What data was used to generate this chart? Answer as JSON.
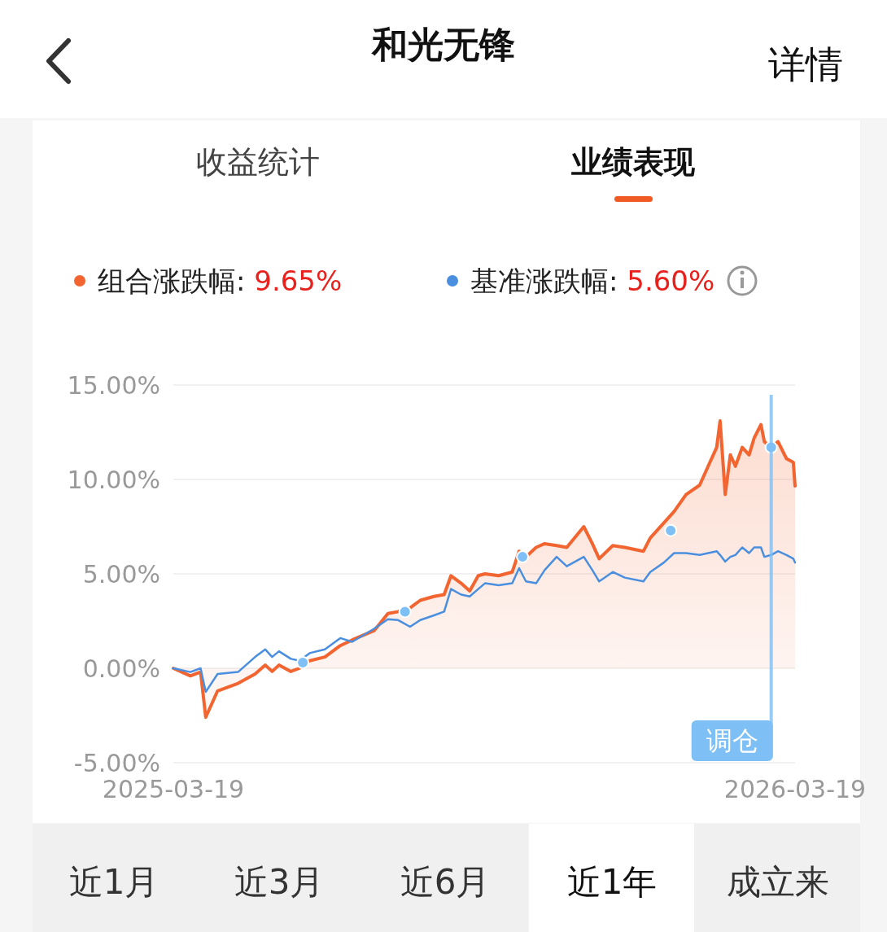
{
  "chart_data": {
    "type": "line",
    "title": "和光无锋",
    "annotations": [
      "详情",
      "收益统计",
      "业绩表现",
      "近1月",
      "近3月",
      "近6月",
      "近1年",
      "成立来"
    ],
    "x": [
      "2025-03-19",
      "2025-03-29",
      "2025-04-04",
      "2025-04-07",
      "2025-04-14",
      "2025-04-26",
      "2025-05-06",
      "2025-05-12",
      "2025-05-16",
      "2025-05-20",
      "2025-05-27",
      "2025-06-01",
      "2025-06-07",
      "2025-06-16",
      "2025-06-25",
      "2025-07-02",
      "2025-07-15",
      "2025-07-23",
      "2025-07-29",
      "2025-08-05",
      "2025-08-11",
      "2025-08-19",
      "2025-08-25",
      "2025-08-29",
      "2025-09-04",
      "2025-09-09",
      "2025-09-14",
      "2025-09-18",
      "2025-09-26",
      "2025-10-04",
      "2025-10-08",
      "2025-10-12",
      "2025-10-18",
      "2025-10-23",
      "2025-10-30",
      "2025-11-05",
      "2025-11-15",
      "2025-11-20",
      "2025-11-24",
      "2025-12-02",
      "2025-12-09",
      "2025-12-20",
      "2025-12-24",
      "2026-01-01",
      "2026-01-07",
      "2026-01-14",
      "2026-01-22",
      "2026-01-27",
      "2026-02-01",
      "2026-02-03",
      "2026-02-06",
      "2026-02-09",
      "2026-02-12",
      "2026-02-16",
      "2026-02-20",
      "2026-02-23",
      "2026-02-27",
      "2026-03-01",
      "2026-03-05",
      "2026-03-09",
      "2026-03-14",
      "2026-03-18",
      "2026-03-19"
    ],
    "series": [
      {
        "name": "基准涨跌幅: 5.60%",
        "color": "#4a8fdf",
        "values": [
          0.0,
          -0.2,
          0.0,
          -1.25,
          -0.3,
          -0.2,
          0.6,
          1.0,
          0.6,
          0.9,
          0.5,
          0.4,
          0.8,
          1.0,
          1.6,
          1.4,
          2.1,
          2.6,
          2.55,
          2.2,
          2.55,
          2.8,
          3.0,
          4.2,
          3.9,
          3.8,
          4.2,
          4.5,
          4.4,
          4.5,
          5.3,
          4.6,
          4.5,
          5.2,
          5.9,
          5.4,
          5.9,
          5.2,
          4.6,
          5.1,
          4.8,
          4.6,
          5.1,
          5.6,
          6.1,
          6.1,
          6.0,
          6.1,
          6.2,
          6.0,
          5.65,
          5.9,
          6.0,
          6.4,
          6.1,
          6.4,
          6.4,
          5.9,
          6.0,
          6.2,
          6.0,
          5.8,
          5.6
        ]
      },
      {
        "name": "组合涨跌幅: 9.65%",
        "color": "#f26430",
        "type": "area",
        "values": [
          0.0,
          -0.4,
          -0.2,
          -2.6,
          -1.2,
          -0.8,
          -0.3,
          0.17,
          -0.17,
          0.17,
          -0.17,
          0.0,
          0.4,
          0.6,
          1.2,
          1.5,
          2.0,
          2.9,
          3.0,
          3.2,
          3.6,
          3.8,
          3.9,
          4.9,
          4.5,
          4.1,
          4.9,
          5.0,
          4.9,
          5.1,
          6.2,
          5.9,
          6.4,
          6.6,
          6.5,
          6.4,
          7.5,
          6.6,
          5.8,
          6.5,
          6.4,
          6.2,
          6.9,
          7.7,
          8.3,
          9.2,
          9.7,
          10.7,
          11.7,
          13.1,
          9.2,
          11.3,
          10.7,
          11.7,
          11.3,
          12.2,
          12.9,
          12.0,
          11.7,
          12.0,
          11.1,
          10.9,
          9.65
        ]
      },
      {
        "color": "#7ec0f5",
        "type": "scatter",
        "marker": "circle",
        "x": [
          "2025-06-03",
          "2025-08-02",
          "2025-10-10",
          "2026-01-05",
          "2026-03-05"
        ],
        "values": [
          0.3,
          3.0,
          5.9,
          7.3,
          11.7
        ]
      }
    ],
    "xlim": [
      "2025-03-19",
      "2026-03-19"
    ],
    "xticks": [
      "2025-03-19",
      "2026-03-19"
    ],
    "ylim": [
      -5,
      15
    ],
    "yticks": [
      {
        "value": 15,
        "label": "15.00%"
      },
      {
        "value": 10,
        "label": "10.00%"
      },
      {
        "value": 5,
        "label": "5.00%"
      },
      {
        "value": 0,
        "label": "0.00%"
      },
      {
        "value": -5,
        "label": "-5.00%"
      }
    ],
    "grid": "y",
    "legend": "top",
    "ref_lines": [
      {
        "axis": "x",
        "value": "2026-03-05",
        "label": "调仓",
        "color": "#7ec0f5"
      }
    ]
  }
}
